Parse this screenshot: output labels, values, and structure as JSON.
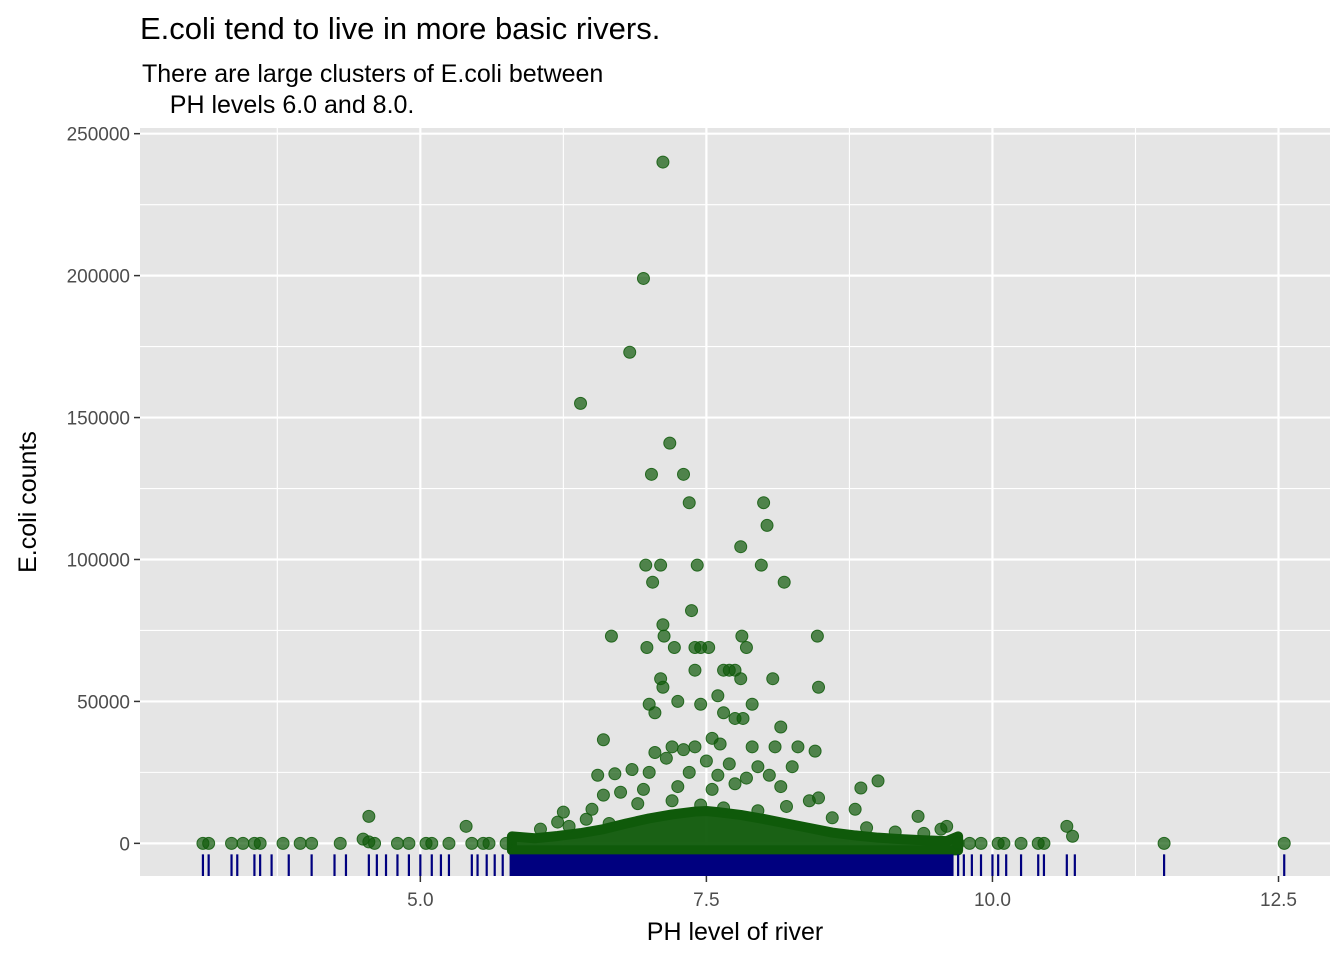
{
  "chart_data": {
    "type": "scatter",
    "title": "E.coli tend to live in more basic rivers.",
    "subtitle_lines": [
      "There are large clusters of E.coli between",
      "    PH levels 6.0 and 8.0."
    ],
    "xlabel": "PH level of river",
    "ylabel": "E.coli counts",
    "xlim": [
      2.55,
      12.95
    ],
    "ylim": [
      -11500,
      252000
    ],
    "x_ticks": [
      5.0,
      7.5,
      10.0,
      12.5
    ],
    "x_tick_labels": [
      "5.0",
      "7.5",
      "10.0",
      "12.5"
    ],
    "y_ticks": [
      0,
      50000,
      100000,
      150000,
      200000,
      250000
    ],
    "y_tick_labels": [
      "0",
      "50000",
      "100000",
      "150000",
      "200000",
      "250000"
    ],
    "grid": true,
    "rug": "x",
    "colors": {
      "panel_background": "#e5e5e5",
      "gridline": "#ffffff",
      "point": "#0f5a0a",
      "rug": "#00007f"
    },
    "points": [
      [
        7.12,
        240000
      ],
      [
        6.95,
        199000
      ],
      [
        6.83,
        173000
      ],
      [
        6.4,
        155000
      ],
      [
        7.18,
        141000
      ],
      [
        7.02,
        130000
      ],
      [
        7.3,
        130000
      ],
      [
        7.35,
        120000
      ],
      [
        8.0,
        120000
      ],
      [
        8.03,
        112000
      ],
      [
        7.8,
        104500
      ],
      [
        6.97,
        98000
      ],
      [
        7.1,
        98000
      ],
      [
        7.42,
        98000
      ],
      [
        7.98,
        98000
      ],
      [
        7.03,
        92000
      ],
      [
        8.18,
        92000
      ],
      [
        7.37,
        82000
      ],
      [
        7.12,
        77000
      ],
      [
        6.67,
        73000
      ],
      [
        7.13,
        73000
      ],
      [
        7.81,
        73000
      ],
      [
        8.47,
        73000
      ],
      [
        6.98,
        69000
      ],
      [
        7.22,
        69000
      ],
      [
        7.4,
        69000
      ],
      [
        7.45,
        69000
      ],
      [
        7.52,
        69000
      ],
      [
        7.85,
        69000
      ],
      [
        7.65,
        61000
      ],
      [
        7.7,
        61000
      ],
      [
        7.75,
        61000
      ],
      [
        7.4,
        61000
      ],
      [
        7.1,
        58000
      ],
      [
        7.8,
        58000
      ],
      [
        8.08,
        58000
      ],
      [
        7.12,
        55000
      ],
      [
        8.48,
        55000
      ],
      [
        7.0,
        49000
      ],
      [
        7.25,
        50000
      ],
      [
        7.45,
        49000
      ],
      [
        7.6,
        52000
      ],
      [
        7.9,
        49000
      ],
      [
        7.05,
        46000
      ],
      [
        7.65,
        46000
      ],
      [
        7.75,
        44000
      ],
      [
        7.82,
        44000
      ],
      [
        8.15,
        41000
      ],
      [
        6.6,
        36500
      ],
      [
        7.55,
        37000
      ],
      [
        7.2,
        34000
      ],
      [
        7.3,
        33000
      ],
      [
        7.4,
        34000
      ],
      [
        7.62,
        35000
      ],
      [
        7.9,
        34000
      ],
      [
        8.1,
        34000
      ],
      [
        8.3,
        34000
      ],
      [
        8.45,
        32500
      ],
      [
        7.05,
        32000
      ],
      [
        7.15,
        30000
      ],
      [
        7.5,
        29000
      ],
      [
        7.7,
        28000
      ],
      [
        7.95,
        27000
      ],
      [
        8.25,
        27000
      ],
      [
        6.55,
        24000
      ],
      [
        6.7,
        24500
      ],
      [
        6.85,
        26000
      ],
      [
        7.0,
        25000
      ],
      [
        7.35,
        25000
      ],
      [
        7.6,
        24000
      ],
      [
        7.85,
        23000
      ],
      [
        8.05,
        24000
      ],
      [
        8.85,
        19500
      ],
      [
        9.0,
        22000
      ],
      [
        8.15,
        20000
      ],
      [
        6.6,
        17000
      ],
      [
        6.75,
        18000
      ],
      [
        6.95,
        19000
      ],
      [
        7.25,
        20000
      ],
      [
        7.55,
        19000
      ],
      [
        7.75,
        21000
      ],
      [
        8.4,
        15000
      ],
      [
        8.48,
        16000
      ],
      [
        8.8,
        12000
      ],
      [
        9.35,
        9500
      ],
      [
        6.25,
        11000
      ],
      [
        6.5,
        12000
      ],
      [
        6.9,
        14000
      ],
      [
        7.2,
        15000
      ],
      [
        7.45,
        13500
      ],
      [
        7.65,
        12500
      ],
      [
        7.95,
        11500
      ],
      [
        8.2,
        13000
      ],
      [
        8.6,
        9000
      ],
      [
        9.55,
        5000
      ],
      [
        9.6,
        6000
      ],
      [
        4.55,
        9500
      ],
      [
        4.5,
        1500
      ],
      [
        5.4,
        6000
      ],
      [
        6.05,
        5000
      ],
      [
        6.2,
        7500
      ],
      [
        6.45,
        8500
      ],
      [
        6.3,
        6000
      ],
      [
        6.65,
        7000
      ],
      [
        8.9,
        5500
      ],
      [
        9.15,
        4000
      ],
      [
        9.4,
        3500
      ],
      [
        10.65,
        6000
      ],
      [
        10.7,
        2500
      ],
      [
        3.1,
        0
      ],
      [
        3.15,
        0
      ],
      [
        3.35,
        0
      ],
      [
        3.45,
        0
      ],
      [
        3.55,
        0
      ],
      [
        3.6,
        0
      ],
      [
        3.8,
        0
      ],
      [
        3.95,
        0
      ],
      [
        4.05,
        0
      ],
      [
        4.3,
        0
      ],
      [
        4.55,
        500
      ],
      [
        4.6,
        0
      ],
      [
        4.8,
        0
      ],
      [
        4.9,
        0
      ],
      [
        5.05,
        0
      ],
      [
        5.1,
        0
      ],
      [
        5.25,
        0
      ],
      [
        5.45,
        0
      ],
      [
        5.55,
        0
      ],
      [
        5.6,
        0
      ],
      [
        5.75,
        0
      ],
      [
        9.7,
        0
      ],
      [
        9.8,
        0
      ],
      [
        9.9,
        0
      ],
      [
        10.05,
        0
      ],
      [
        10.1,
        0
      ],
      [
        10.25,
        0
      ],
      [
        10.4,
        0
      ],
      [
        10.45,
        0
      ],
      [
        11.5,
        0
      ],
      [
        12.55,
        0
      ]
    ],
    "dense_band": [
      [
        6.0,
        1800
      ],
      [
        6.2,
        2600
      ],
      [
        6.4,
        3600
      ],
      [
        6.6,
        5000
      ],
      [
        6.8,
        7000
      ],
      [
        7.0,
        8800
      ],
      [
        7.2,
        10200
      ],
      [
        7.4,
        11200
      ],
      [
        7.5,
        11400
      ],
      [
        7.6,
        11000
      ],
      [
        7.8,
        10000
      ],
      [
        8.0,
        8600
      ],
      [
        8.2,
        7000
      ],
      [
        8.4,
        5400
      ],
      [
        8.6,
        3800
      ],
      [
        8.8,
        2800
      ],
      [
        9.0,
        2000
      ],
      [
        9.2,
        1500
      ],
      [
        9.4,
        1100
      ],
      [
        9.6,
        800
      ]
    ],
    "dense_band_range": [
      5.8,
      9.7
    ],
    "rug_x": [
      3.1,
      3.15,
      3.35,
      3.4,
      3.55,
      3.6,
      3.7,
      3.85,
      4.05,
      4.25,
      4.35,
      4.55,
      4.62,
      4.7,
      4.8,
      4.9,
      5.0,
      5.1,
      5.18,
      5.25,
      5.45,
      5.5,
      5.58,
      5.65,
      5.72,
      9.7,
      9.75,
      9.82,
      9.9,
      10.0,
      10.05,
      10.12,
      10.25,
      10.4,
      10.45,
      10.65,
      10.72,
      11.5,
      12.55
    ],
    "rug_dense_range": [
      5.78,
      9.66
    ]
  }
}
